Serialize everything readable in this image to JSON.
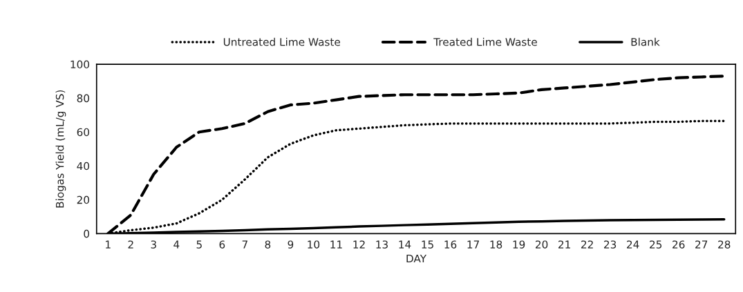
{
  "chart_data": {
    "type": "line",
    "xlabel": "DAY",
    "ylabel": "Biogas Yield (mL/g VS)",
    "categories": [
      "1",
      "2",
      "3",
      "4",
      "5",
      "6",
      "7",
      "8",
      "9",
      "10",
      "11",
      "12",
      "13",
      "14",
      "15",
      "16",
      "17",
      "18",
      "19",
      "20",
      "21",
      "22",
      "23",
      "24",
      "25",
      "26",
      "27",
      "28"
    ],
    "series": [
      {
        "name": "Untreated Lime Waste",
        "color": "#000000",
        "line_style": "dotted",
        "values": [
          0,
          2,
          3.5,
          6,
          12,
          20,
          32,
          45,
          53,
          58,
          61,
          62,
          63,
          64,
          64.5,
          65,
          65,
          65,
          65,
          65,
          65,
          65,
          65,
          65.5,
          66,
          66,
          66.5,
          66.5
        ]
      },
      {
        "name": "Treated Lime Waste",
        "color": "#000000",
        "line_style": "dashed",
        "values": [
          0,
          11,
          35,
          51,
          60,
          62,
          65,
          72,
          76,
          77,
          79,
          81,
          81.5,
          82,
          82,
          82,
          82,
          82.5,
          83,
          85,
          86,
          87,
          88,
          89.5,
          91,
          92,
          92.5,
          93
        ]
      },
      {
        "name": "Blank",
        "color": "#000000",
        "line_style": "solid",
        "values": [
          0,
          0.3,
          0.6,
          1,
          1.3,
          1.6,
          2,
          2.5,
          2.8,
          3.2,
          3.7,
          4.2,
          4.6,
          5,
          5.4,
          5.8,
          6.2,
          6.6,
          7,
          7.2,
          7.5,
          7.7,
          7.9,
          8,
          8.1,
          8.2,
          8.3,
          8.4
        ]
      }
    ],
    "ylim": [
      0,
      100
    ],
    "yticks": [
      0,
      20,
      40,
      60,
      80,
      100
    ],
    "grid": false,
    "legend": "top"
  }
}
